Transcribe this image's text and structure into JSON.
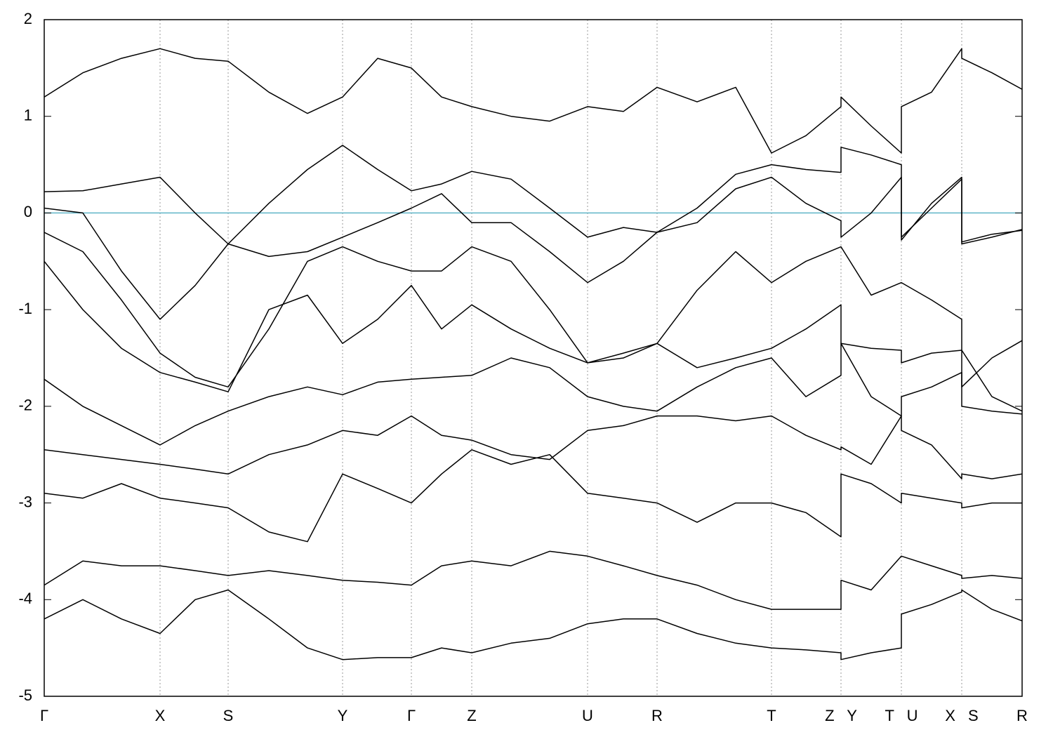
{
  "chart_data": {
    "type": "line",
    "x": [
      0,
      55,
      110,
      165,
      215,
      262,
      320,
      375,
      425,
      475,
      523,
      566,
      609,
      665,
      720,
      774,
      825,
      873,
      930,
      985,
      1036,
      1085,
      1135,
      1135,
      1178,
      1221,
      1221,
      1264,
      1307,
      1307,
      1350,
      1393
    ],
    "xlim": [
      0,
      1393
    ],
    "xticks": [
      {
        "value": 0,
        "label": "Γ"
      },
      {
        "value": 165,
        "label": "X"
      },
      {
        "value": 262,
        "label": "S"
      },
      {
        "value": 425,
        "label": "Y"
      },
      {
        "value": 523,
        "label": "Γ"
      },
      {
        "value": 609,
        "label": "Z"
      },
      {
        "value": 774,
        "label": "U"
      },
      {
        "value": 873,
        "label": "R"
      },
      {
        "value": 1036,
        "label": "T"
      },
      {
        "value": 1135,
        "label": "Z Y"
      },
      {
        "value": 1221,
        "label": "T U"
      },
      {
        "value": 1307,
        "label": "X S"
      },
      {
        "value": 1393,
        "label": "R"
      }
    ],
    "ylim": [
      -5,
      2
    ],
    "yticks": [
      -5,
      -4,
      -3,
      -2,
      -1,
      0,
      1,
      2
    ],
    "xgrid": true,
    "color": "#000000",
    "fermi_level": 0,
    "fermi_color": "#5fb4c8",
    "series": [
      {
        "values": [
          1.2,
          1.45,
          1.6,
          1.7,
          1.6,
          1.57,
          1.25,
          1.03,
          1.2,
          1.6,
          1.5,
          1.2,
          1.1,
          1.0,
          0.95,
          1.1,
          1.05,
          1.3,
          1.15,
          1.3,
          0.62,
          0.8,
          1.1,
          1.2,
          0.9,
          0.62,
          1.1,
          1.25,
          1.7,
          1.6,
          1.45,
          1.28
        ]
      },
      {
        "values": [
          0.22,
          0.23,
          0.3,
          0.37,
          0.0,
          -0.32,
          0.1,
          0.45,
          0.7,
          0.45,
          0.23,
          0.3,
          0.43,
          0.35,
          0.05,
          -0.25,
          -0.15,
          -0.2,
          0.05,
          0.4,
          0.5,
          0.45,
          0.42,
          0.68,
          0.6,
          0.5,
          -0.25,
          0.05,
          0.35,
          -0.3,
          -0.22,
          -0.18
        ]
      },
      {
        "values": [
          0.05,
          0.0,
          -0.6,
          -1.1,
          -0.75,
          -0.32,
          -0.45,
          -0.4,
          -0.25,
          -0.1,
          0.05,
          0.2,
          -0.1,
          -0.1,
          -0.4,
          -0.72,
          -0.5,
          -0.2,
          -0.1,
          0.25,
          0.37,
          0.1,
          -0.08,
          -0.25,
          0.0,
          0.37,
          -0.28,
          0.1,
          0.37,
          -0.32,
          -0.25,
          -0.17
        ]
      },
      {
        "values": [
          -0.2,
          -0.4,
          -0.9,
          -1.45,
          -1.7,
          -1.8,
          -1.2,
          -0.5,
          -0.35,
          -0.5,
          -0.6,
          -0.6,
          -0.35,
          -0.5,
          -1.0,
          -1.55,
          -1.5,
          -1.35,
          -0.8,
          -0.4,
          -0.72,
          -0.5,
          -0.35,
          -0.35,
          -0.85,
          -0.72,
          -0.72,
          -0.9,
          -1.1,
          -1.8,
          -1.5,
          -1.32
        ]
      },
      {
        "values": [
          -0.5,
          -1.0,
          -1.4,
          -1.65,
          -1.75,
          -1.85,
          -1.0,
          -0.85,
          -1.35,
          -1.1,
          -0.75,
          -1.2,
          -0.95,
          -1.2,
          -1.4,
          -1.55,
          -1.45,
          -1.35,
          -1.6,
          -1.5,
          -1.4,
          -1.2,
          -0.95,
          -1.35,
          -1.4,
          -1.42,
          -1.55,
          -1.45,
          -1.42,
          -1.42,
          -1.9,
          -2.05
        ]
      },
      {
        "values": [
          -1.72,
          -2.0,
          -2.2,
          -2.4,
          -2.2,
          -2.05,
          -1.9,
          -1.8,
          -1.88,
          -1.75,
          -1.72,
          -1.7,
          -1.68,
          -1.5,
          -1.6,
          -1.9,
          -2.0,
          -2.05,
          -1.8,
          -1.6,
          -1.5,
          -1.9,
          -1.68,
          -1.35,
          -1.9,
          -2.1,
          -1.9,
          -1.8,
          -1.65,
          -2.0,
          -2.05,
          -2.08
        ]
      },
      {
        "values": [
          -2.45,
          -2.5,
          -2.55,
          -2.6,
          -2.65,
          -2.7,
          -2.5,
          -2.4,
          -2.25,
          -2.3,
          -2.1,
          -2.3,
          -2.35,
          -2.5,
          -2.55,
          -2.25,
          -2.2,
          -2.1,
          -2.1,
          -2.15,
          -2.1,
          -2.3,
          -2.45,
          -2.42,
          -2.6,
          -2.1,
          -2.25,
          -2.4,
          -2.75,
          -2.7,
          -2.75,
          -2.7
        ]
      },
      {
        "values": [
          -2.9,
          -2.95,
          -2.8,
          -2.95,
          -3.0,
          -3.05,
          -3.3,
          -3.4,
          -2.7,
          -2.85,
          -3.0,
          -2.7,
          -2.45,
          -2.6,
          -2.5,
          -2.9,
          -2.95,
          -3.0,
          -3.2,
          -3.0,
          -3.0,
          -3.1,
          -3.35,
          -2.7,
          -2.8,
          -3.0,
          -2.9,
          -2.95,
          -3.0,
          -3.05,
          -3.0,
          -3.0
        ]
      },
      {
        "values": [
          -3.85,
          -3.6,
          -3.65,
          -3.65,
          -3.7,
          -3.75,
          -3.7,
          -3.75,
          -3.8,
          -3.82,
          -3.85,
          -3.65,
          -3.6,
          -3.65,
          -3.5,
          -3.55,
          -3.65,
          -3.75,
          -3.85,
          -4.0,
          -4.1,
          -4.1,
          -4.1,
          -3.8,
          -3.9,
          -3.55,
          -3.55,
          -3.65,
          -3.75,
          -3.78,
          -3.75,
          -3.78
        ]
      },
      {
        "values": [
          -4.2,
          -4.0,
          -4.2,
          -4.35,
          -4.0,
          -3.9,
          -4.2,
          -4.5,
          -4.62,
          -4.6,
          -4.6,
          -4.5,
          -4.55,
          -4.45,
          -4.4,
          -4.25,
          -4.2,
          -4.2,
          -4.35,
          -4.45,
          -4.5,
          -4.52,
          -4.55,
          -4.62,
          -4.55,
          -4.5,
          -4.15,
          -4.05,
          -3.92,
          -3.9,
          -4.1,
          -4.22
        ]
      }
    ]
  }
}
